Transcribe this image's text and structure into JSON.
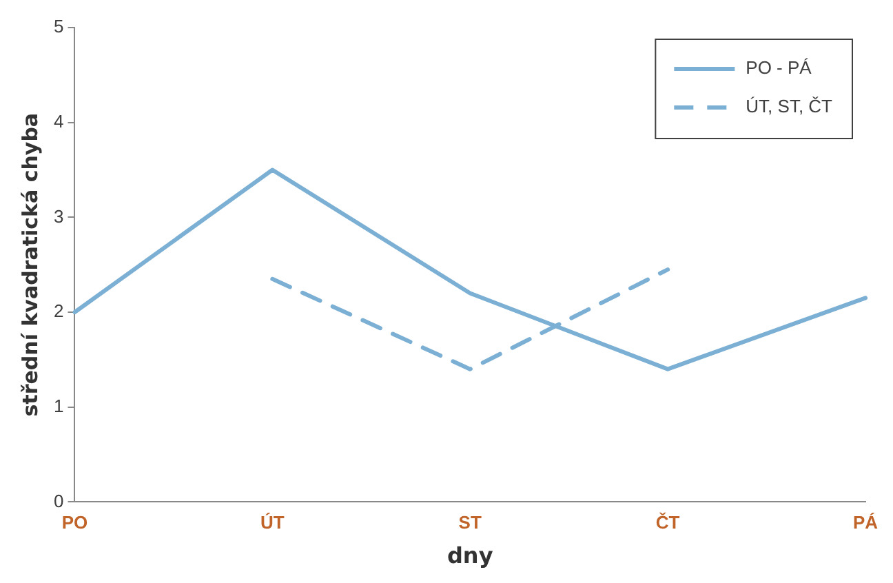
{
  "chart_data": {
    "type": "line",
    "xlabel": "dny",
    "ylabel": "střední kvadratická chyba",
    "categories": [
      "PO",
      "ÚT",
      "ST",
      "ČT",
      "PÁ"
    ],
    "series": [
      {
        "name": "PO - PÁ",
        "color": "#7bafd4",
        "values": [
          2.0,
          3.5,
          2.2,
          1.4,
          2.15
        ],
        "line_style": "solid"
      },
      {
        "name": "ÚT, ST, ČT",
        "color": "#7bafd4",
        "values": [
          null,
          2.35,
          1.4,
          2.45,
          null
        ],
        "line_style": "dashed"
      }
    ],
    "ylim": [
      0,
      5
    ],
    "yticks": [
      0,
      1,
      2,
      3,
      4,
      5
    ],
    "grid": false,
    "legend": "top right",
    "marker": "none"
  }
}
